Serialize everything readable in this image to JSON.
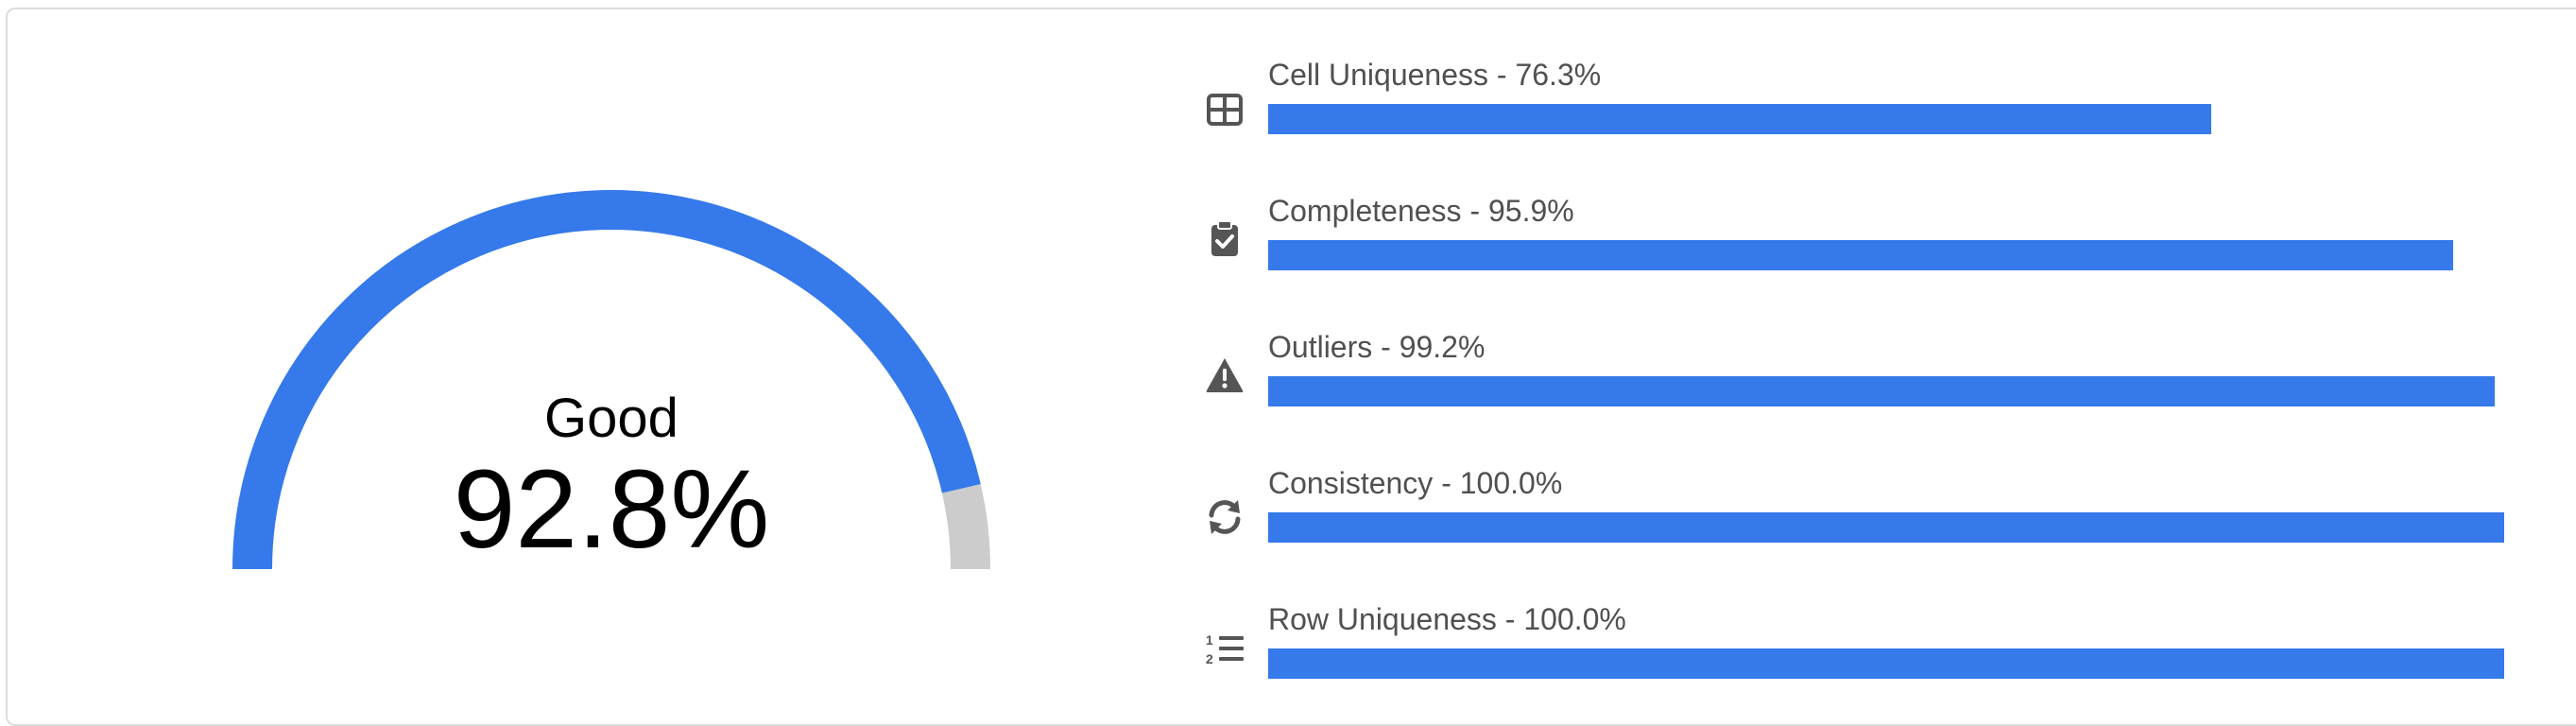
{
  "colors": {
    "accent": "#3579ea",
    "track": "#cccccc",
    "icon": "#555555",
    "label": "#505050"
  },
  "gauge": {
    "label": "Good",
    "value_text": "92.8%",
    "fraction": 0.928
  },
  "metrics": [
    {
      "icon": "table-icon",
      "label": "Cell Uniqueness - 76.3%",
      "percent": 76.3
    },
    {
      "icon": "clipboard-check-icon",
      "label": "Completeness - 95.9%",
      "percent": 95.9
    },
    {
      "icon": "warning-icon",
      "label": "Outliers - 99.2%",
      "percent": 99.2
    },
    {
      "icon": "sync-icon",
      "label": "Consistency - 100.0%",
      "percent": 100.0
    },
    {
      "icon": "list-ol-icon",
      "label": "Row Uniqueness - 100.0%",
      "percent": 100.0
    }
  ]
}
